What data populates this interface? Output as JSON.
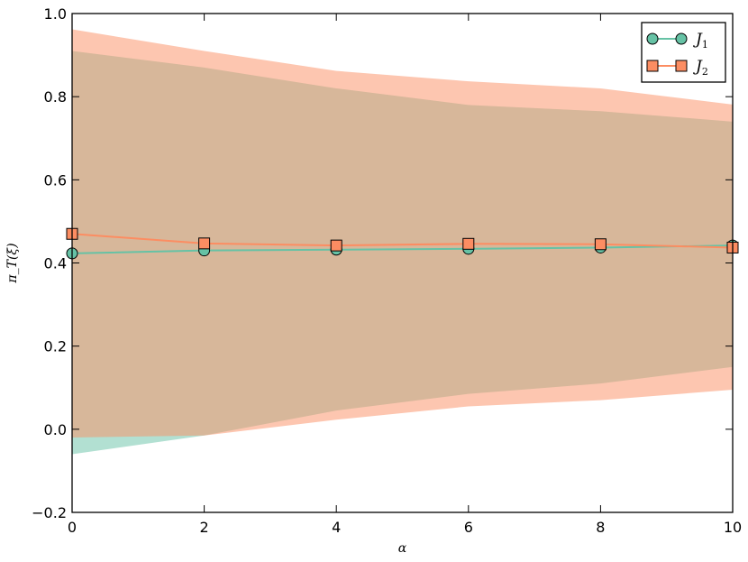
{
  "chart_data": {
    "type": "line",
    "xlabel": "α",
    "ylabel": "π_T(ξ)",
    "xlim": [
      0,
      10
    ],
    "ylim": [
      -0.2,
      1.0
    ],
    "x_ticks": [
      0,
      2,
      4,
      6,
      8,
      10
    ],
    "y_ticks": [
      -0.2,
      0.0,
      0.2,
      0.4,
      0.6,
      0.8,
      1.0
    ],
    "x_tick_labels": [
      "0",
      "2",
      "4",
      "6",
      "8",
      "10"
    ],
    "y_tick_labels": [
      "−0.2",
      "0.0",
      "0.2",
      "0.4",
      "0.6",
      "0.8",
      "1.0"
    ],
    "grid": false,
    "legend_position": "top-right",
    "x": [
      0,
      2,
      4,
      6,
      8,
      10
    ],
    "series": [
      {
        "name": "J1",
        "legend_main": "J",
        "legend_sub": "1",
        "color": "#66c2a5",
        "marker": "circle",
        "values": [
          0.423,
          0.43,
          0.432,
          0.434,
          0.437,
          0.442
        ],
        "band_upper": [
          0.91,
          0.87,
          0.82,
          0.78,
          0.765,
          0.74
        ],
        "band_lower": [
          -0.06,
          -0.015,
          0.045,
          0.085,
          0.11,
          0.15
        ]
      },
      {
        "name": "J2",
        "legend_main": "J",
        "legend_sub": "2",
        "color": "#fc8d62",
        "marker": "square",
        "values": [
          0.47,
          0.447,
          0.442,
          0.446,
          0.445,
          0.437
        ],
        "band_upper": [
          0.962,
          0.91,
          0.862,
          0.837,
          0.82,
          0.781
        ],
        "band_lower": [
          -0.02,
          -0.015,
          0.023,
          0.055,
          0.07,
          0.095
        ]
      }
    ]
  }
}
